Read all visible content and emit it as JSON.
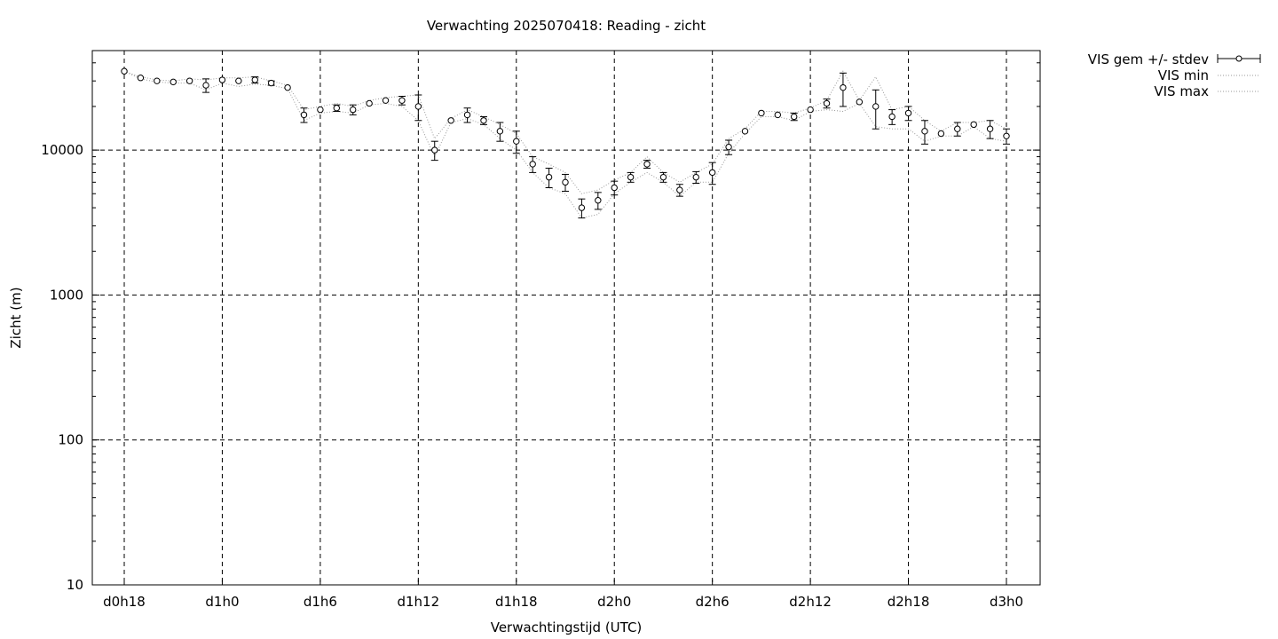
{
  "chart_data": {
    "type": "line",
    "title": "Verwachting 2025070418: Reading - zicht",
    "xlabel": "Verwachtingstijd (UTC)",
    "ylabel": "Zicht (m)",
    "yscale": "log",
    "ylim": [
      10,
      50000
    ],
    "xlim_hours": [
      18,
      75
    ],
    "grid": true,
    "legend_position": "outside-right",
    "x_ticks": [
      {
        "hour": 18,
        "label": "d0h18"
      },
      {
        "hour": 24,
        "label": "d1h0"
      },
      {
        "hour": 30,
        "label": "d1h6"
      },
      {
        "hour": 36,
        "label": "d1h12"
      },
      {
        "hour": 42,
        "label": "d1h18"
      },
      {
        "hour": 48,
        "label": "d2h0"
      },
      {
        "hour": 54,
        "label": "d2h6"
      },
      {
        "hour": 60,
        "label": "d2h12"
      },
      {
        "hour": 66,
        "label": "d2h18"
      },
      {
        "hour": 72,
        "label": "d3h0"
      }
    ],
    "y_ticks": [
      {
        "value": 10,
        "label": "10"
      },
      {
        "value": 100,
        "label": "100"
      },
      {
        "value": 1000,
        "label": "1000"
      },
      {
        "value": 10000,
        "label": "10000"
      }
    ],
    "legend": [
      {
        "name": "VIS gem +/- stdev",
        "style": "errorbar"
      },
      {
        "name": "VIS min",
        "style": "dotted"
      },
      {
        "name": "VIS max",
        "style": "dotted"
      }
    ],
    "series": [
      {
        "name": "VIS gem +/- stdev",
        "x": [
          18,
          19,
          20,
          21,
          22,
          23,
          24,
          25,
          26,
          27,
          28,
          29,
          30,
          31,
          32,
          33,
          34,
          35,
          36,
          37,
          38,
          39,
          40,
          41,
          42,
          43,
          44,
          45,
          46,
          47,
          48,
          49,
          50,
          51,
          52,
          53,
          54,
          55,
          56,
          57,
          58,
          59,
          60,
          61,
          62,
          63,
          64,
          65,
          66,
          67,
          68,
          69,
          70,
          71,
          72
        ],
        "mean": [
          35000,
          31500,
          30000,
          29500,
          30000,
          28000,
          30500,
          30000,
          30500,
          29000,
          27000,
          17500,
          19000,
          19500,
          19000,
          21000,
          22000,
          22000,
          20000,
          10000,
          16000,
          17500,
          16000,
          13500,
          11500,
          8000,
          6500,
          6000,
          4000,
          4500,
          5500,
          6500,
          8000,
          6500,
          5300,
          6500,
          7000,
          10500,
          13500,
          18000,
          17500,
          17000,
          19000,
          21000,
          27000,
          21500,
          20000,
          17000,
          18000,
          13500,
          13000,
          14000,
          15000,
          14000,
          12500
        ],
        "err": [
          0,
          0,
          0,
          0,
          0,
          3000,
          0,
          0,
          1500,
          1000,
          0,
          2000,
          0,
          1000,
          1500,
          0,
          0,
          1500,
          4000,
          1500,
          0,
          2000,
          1000,
          2000,
          2000,
          1000,
          1000,
          800,
          600,
          600,
          600,
          500,
          500,
          500,
          500,
          600,
          1200,
          1200,
          0,
          0,
          0,
          1000,
          0,
          1500,
          7000,
          0,
          6000,
          2000,
          2000,
          2500,
          0,
          1500,
          0,
          2000,
          1500
        ]
      },
      {
        "name": "VIS min",
        "x": [
          18,
          19,
          20,
          21,
          22,
          23,
          24,
          25,
          26,
          27,
          28,
          29,
          30,
          31,
          32,
          33,
          34,
          35,
          36,
          37,
          38,
          39,
          40,
          41,
          42,
          43,
          44,
          45,
          46,
          47,
          48,
          49,
          50,
          51,
          52,
          53,
          54,
          55,
          56,
          57,
          58,
          59,
          60,
          61,
          62,
          63,
          64,
          65,
          66,
          67,
          68,
          69,
          70,
          71,
          72
        ],
        "values": [
          35000,
          31000,
          29500,
          29000,
          29000,
          26000,
          29000,
          27500,
          28500,
          28000,
          26500,
          16000,
          18000,
          18500,
          18000,
          20500,
          21000,
          20000,
          16000,
          9000,
          15500,
          16500,
          15000,
          12000,
          10000,
          7000,
          5500,
          5000,
          3400,
          3600,
          5000,
          6000,
          7000,
          6000,
          4800,
          6000,
          6000,
          9500,
          13000,
          17000,
          17000,
          16000,
          18500,
          19000,
          18500,
          21000,
          14500,
          14000,
          14000,
          11500,
          12500,
          12500,
          14500,
          12000,
          11500
        ]
      },
      {
        "name": "VIS max",
        "x": [
          18,
          19,
          20,
          21,
          22,
          23,
          24,
          25,
          26,
          27,
          28,
          29,
          30,
          31,
          32,
          33,
          34,
          35,
          36,
          37,
          38,
          39,
          40,
          41,
          42,
          43,
          44,
          45,
          46,
          47,
          48,
          49,
          50,
          51,
          52,
          53,
          54,
          55,
          56,
          57,
          58,
          59,
          60,
          61,
          62,
          63,
          64,
          65,
          66,
          67,
          68,
          69,
          70,
          71,
          72
        ],
        "values": [
          35000,
          32000,
          30500,
          30000,
          31000,
          30500,
          31500,
          31500,
          32000,
          30000,
          28000,
          19000,
          20000,
          21000,
          20000,
          22000,
          23000,
          23500,
          24000,
          12000,
          16500,
          19000,
          17000,
          15000,
          13000,
          9000,
          8000,
          7000,
          5000,
          5300,
          6200,
          7000,
          9000,
          7000,
          6000,
          7000,
          8000,
          12000,
          14000,
          18500,
          18500,
          18000,
          19500,
          22000,
          35000,
          22000,
          32000,
          19000,
          20000,
          16000,
          13500,
          15500,
          15500,
          16000,
          14000
        ]
      }
    ]
  }
}
